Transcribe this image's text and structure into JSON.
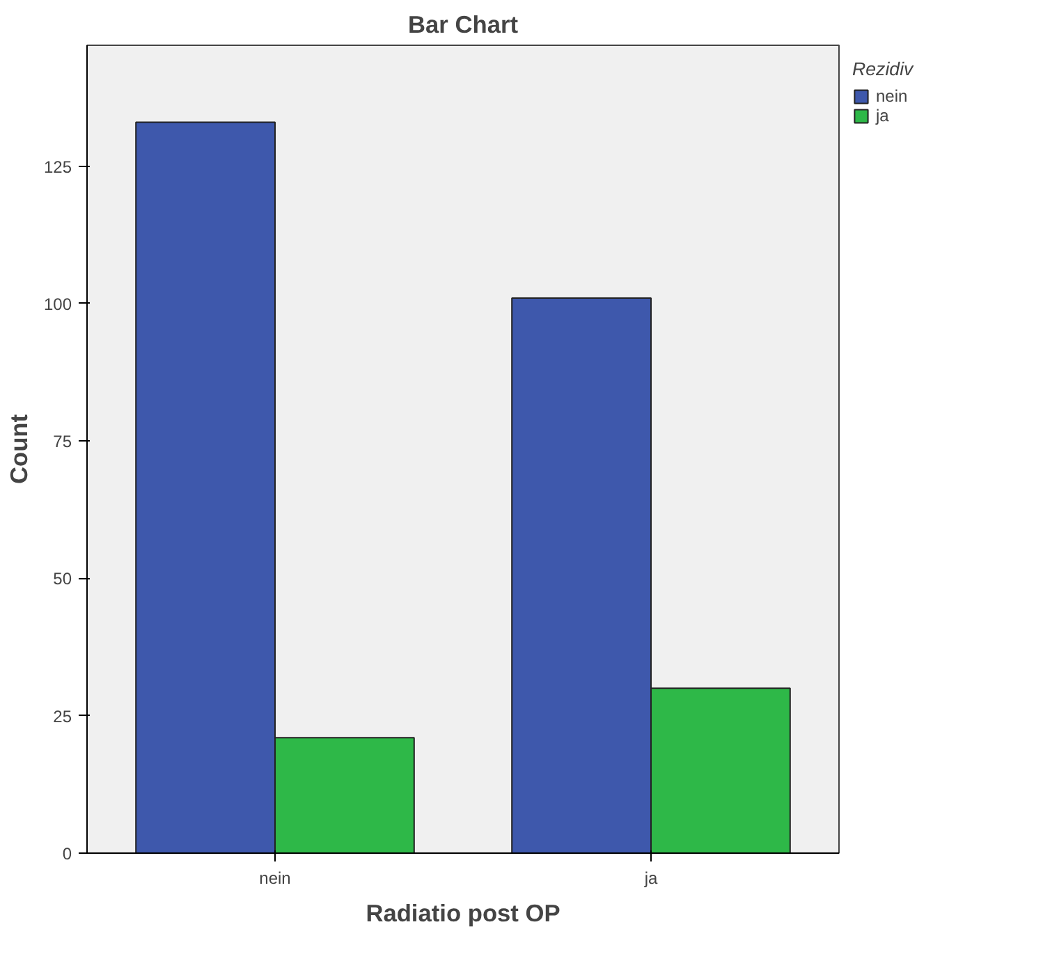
{
  "chart_data": {
    "type": "bar",
    "title": "Bar Chart",
    "xlabel": "Radiatio post OP",
    "ylabel": "Count",
    "legend_title": "Rezidiv",
    "categories": [
      "nein",
      "ja"
    ],
    "series": [
      {
        "name": "nein",
        "color": "#3e58ac",
        "values": [
          133,
          101
        ]
      },
      {
        "name": "ja",
        "color": "#2eb848",
        "values": [
          21,
          30
        ]
      }
    ],
    "ylim": [
      0,
      147
    ],
    "yticks": [
      0,
      25,
      50,
      75,
      100,
      125
    ],
    "grid": false,
    "legend": "top right"
  }
}
